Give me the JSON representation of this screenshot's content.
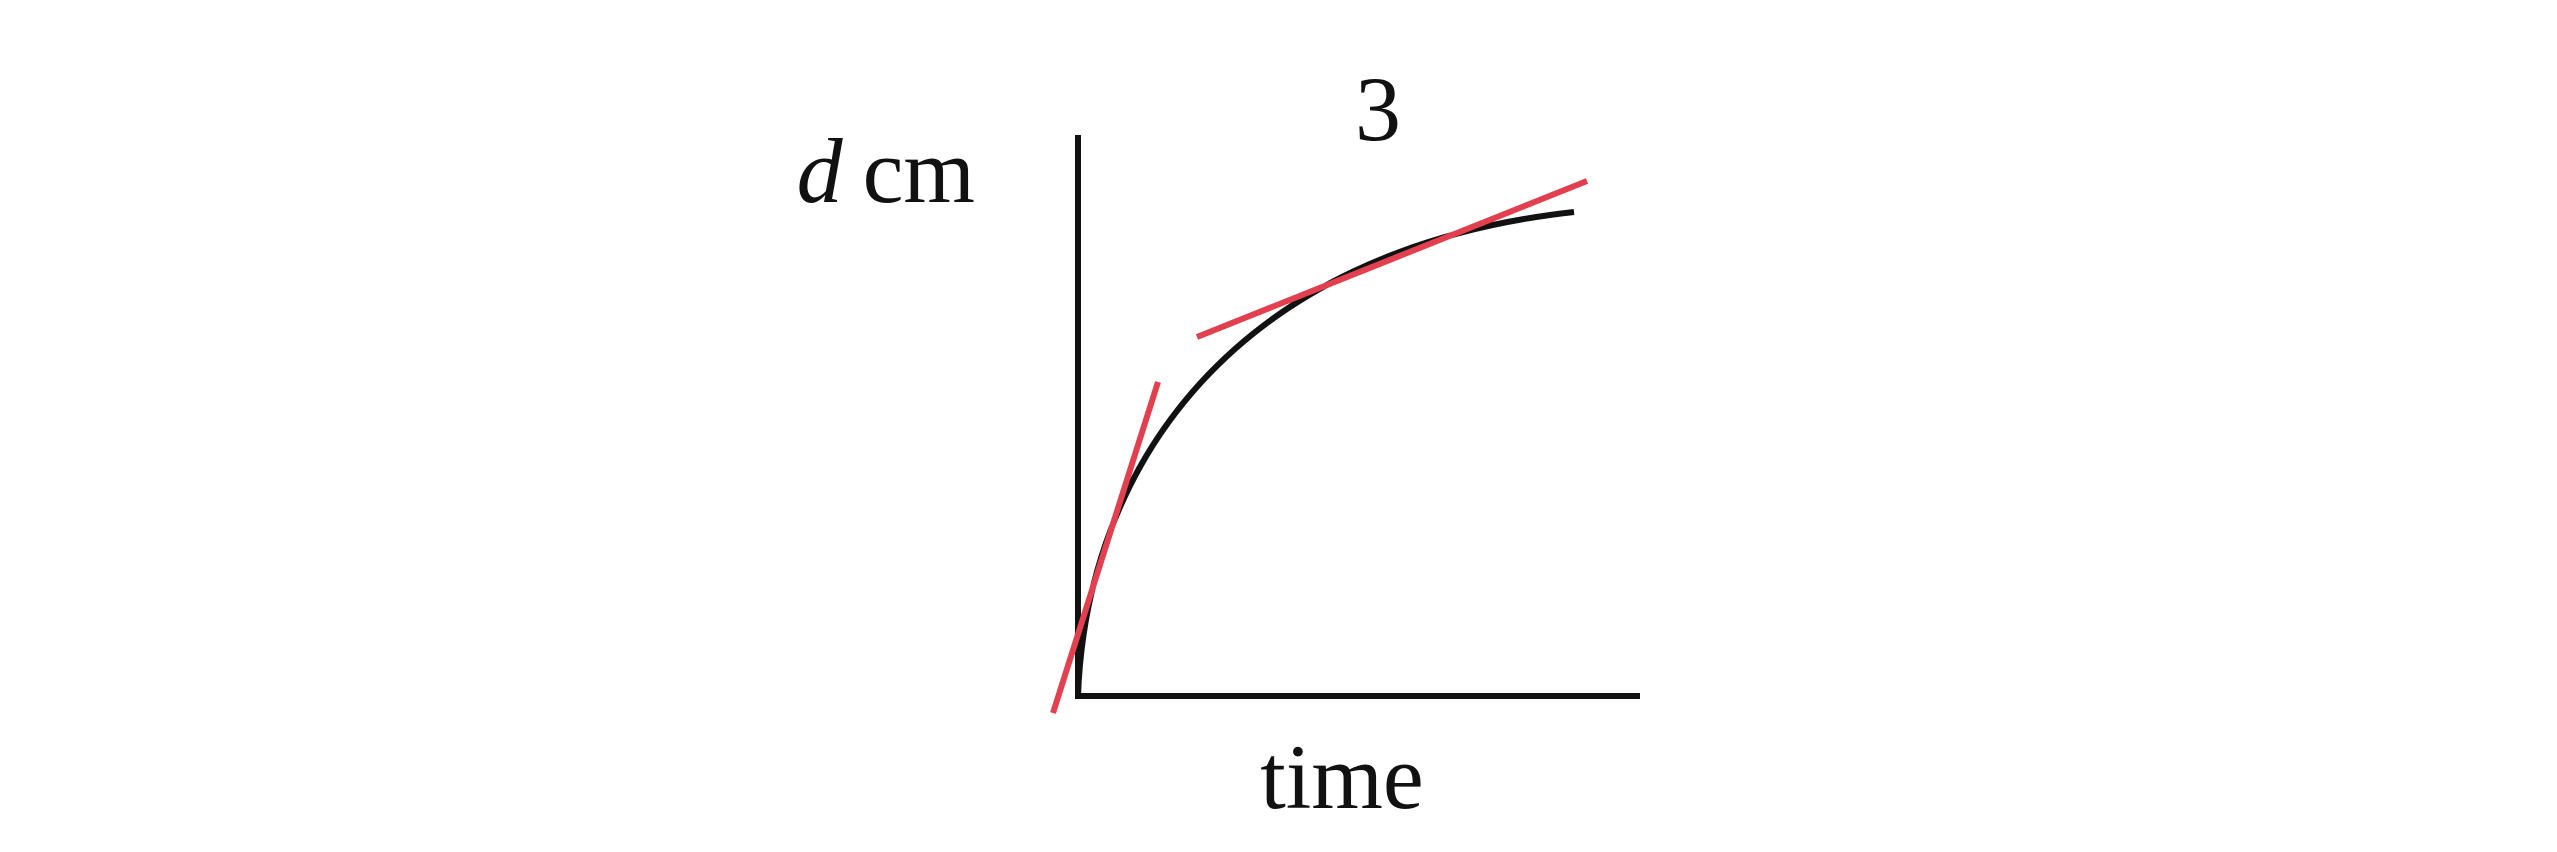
{
  "label": "3",
  "y_axis_label": {
    "variable": "d",
    "unit": "cm"
  },
  "x_axis_label": "time"
}
